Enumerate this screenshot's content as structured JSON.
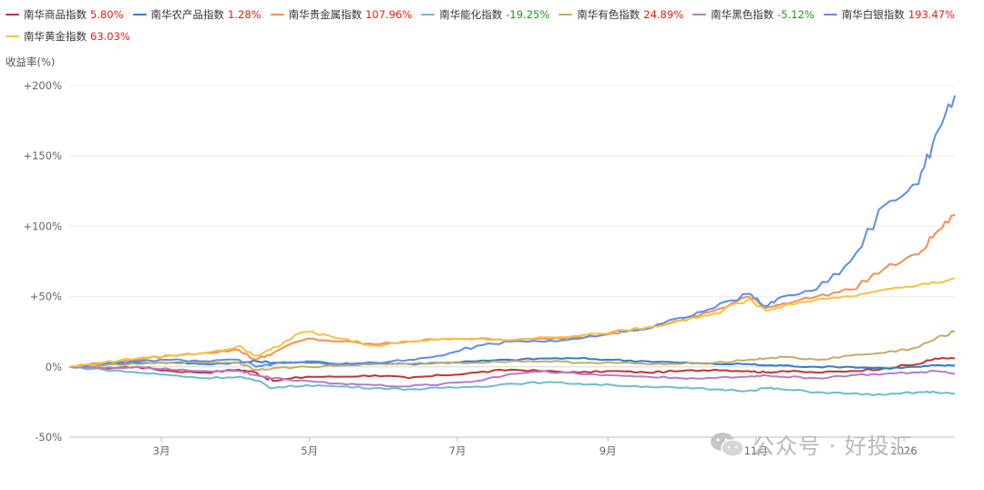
{
  "legend_rows": [
    [
      {
        "name": "南华商品指数",
        "value": "5.80%",
        "color": "#c23531",
        "sign": "pos"
      },
      {
        "name": "南华农产品指数",
        "value": "1.28%",
        "color": "#2f7fc8",
        "sign": "pos"
      },
      {
        "name": "南华贵金属指数",
        "value": "107.96%",
        "color": "#f48f56",
        "sign": "pos"
      },
      {
        "name": "南华能化指数",
        "value": "-19.25%",
        "color": "#6bbfc7",
        "sign": "neg"
      },
      {
        "name": "南华有色指数",
        "value": "24.89%",
        "color": "#c2ad69",
        "sign": "pos"
      },
      {
        "name": "南华黑色指数",
        "value": "-5.12%",
        "color": "#b37dd0",
        "sign": "neg"
      },
      {
        "name": "南华白银指数",
        "value": "193.47%",
        "color": "#5e8ee8",
        "sign": "pos"
      }
    ],
    [
      {
        "name": "南华黄金指数",
        "value": "63.03%",
        "color": "#f5c242",
        "sign": "pos"
      }
    ]
  ],
  "watermark": "公众号 · 好投汇",
  "chart_data": {
    "type": "line",
    "ylabel": "收益率(%)",
    "ylim": [
      -50,
      200
    ],
    "yticks": [
      {
        "value": 200,
        "label": "+200%"
      },
      {
        "value": 150,
        "label": "+150%"
      },
      {
        "value": 100,
        "label": "+100%"
      },
      {
        "value": 50,
        "label": "+50%"
      },
      {
        "value": 0,
        "label": "0%"
      },
      {
        "value": -50,
        "label": "-50%"
      }
    ],
    "xlim": [
      "2025-01-22",
      "2026-01-22"
    ],
    "xticks": [
      {
        "date": "2025-03-01",
        "label": "3月"
      },
      {
        "date": "2025-05-01",
        "label": "5月"
      },
      {
        "date": "2025-07-01",
        "label": "7月"
      },
      {
        "date": "2025-09-01",
        "label": "9月"
      },
      {
        "date": "2025-11-01",
        "label": "11月"
      },
      {
        "date": "2026-01-01",
        "label": "2026"
      }
    ],
    "grid": "horizontal",
    "legend_position": "top-left",
    "dates": [
      "2025-01-22",
      "2025-02-05",
      "2025-02-19",
      "2025-03-05",
      "2025-03-19",
      "2025-04-02",
      "2025-04-09",
      "2025-04-16",
      "2025-04-30",
      "2025-05-14",
      "2025-05-28",
      "2025-06-11",
      "2025-06-25",
      "2025-07-09",
      "2025-07-23",
      "2025-08-06",
      "2025-08-20",
      "2025-09-03",
      "2025-09-17",
      "2025-10-01",
      "2025-10-15",
      "2025-10-29",
      "2025-11-05",
      "2025-11-12",
      "2025-11-26",
      "2025-12-10",
      "2025-12-24",
      "2026-01-07",
      "2026-01-14",
      "2026-01-22"
    ],
    "series": [
      {
        "name": "南华商品指数",
        "color": "#c23531",
        "values": [
          0,
          -1,
          0,
          -3,
          -4,
          -2,
          -4,
          -10,
          -7,
          -7,
          -6,
          -8,
          -6,
          -4,
          -2,
          -3,
          -4,
          -3,
          -4,
          -3,
          -2,
          -3,
          -4,
          -3,
          -4,
          -3,
          -1,
          2,
          6,
          6
        ]
      },
      {
        "name": "南华农产品指数",
        "color": "#2f7fc8",
        "values": [
          0,
          2,
          3,
          3,
          2,
          3,
          4,
          3,
          3,
          2,
          3,
          2,
          3,
          4,
          5,
          6,
          6,
          5,
          4,
          3,
          2,
          2,
          1,
          1,
          0,
          0,
          -1,
          0,
          1,
          1
        ]
      },
      {
        "name": "南华贵金属指数",
        "color": "#f48f56",
        "values": [
          0,
          3,
          5,
          8,
          10,
          12,
          5,
          10,
          20,
          18,
          16,
          18,
          20,
          20,
          19,
          20,
          21,
          24,
          28,
          33,
          40,
          50,
          42,
          45,
          50,
          55,
          70,
          80,
          95,
          108
        ]
      },
      {
        "name": "南华能化指数",
        "color": "#6bbfc7",
        "values": [
          0,
          -2,
          -4,
          -6,
          -8,
          -7,
          -10,
          -15,
          -13,
          -14,
          -15,
          -16,
          -15,
          -14,
          -12,
          -11,
          -12,
          -13,
          -14,
          -15,
          -16,
          -17,
          -15,
          -16,
          -18,
          -19,
          -20,
          -18,
          -18,
          -19
        ]
      },
      {
        "name": "南华有色指数",
        "color": "#c2ad69",
        "values": [
          0,
          1,
          2,
          3,
          3,
          3,
          -2,
          -1,
          0,
          1,
          2,
          2,
          3,
          3,
          4,
          4,
          3,
          3,
          2,
          2,
          3,
          5,
          6,
          7,
          5,
          8,
          10,
          14,
          20,
          25
        ]
      },
      {
        "name": "南华黑色指数",
        "color": "#b37dd0",
        "values": [
          0,
          -1,
          0,
          -2,
          -3,
          -3,
          -6,
          -8,
          -10,
          -12,
          -13,
          -14,
          -12,
          -10,
          -5,
          -3,
          -5,
          -6,
          -7,
          -8,
          -8,
          -7,
          -6,
          -7,
          -8,
          -6,
          -5,
          -4,
          -3,
          -5
        ]
      },
      {
        "name": "南华白银指数",
        "color": "#5e8ee8",
        "values": [
          0,
          2,
          4,
          5,
          4,
          5,
          0,
          2,
          4,
          2,
          3,
          5,
          8,
          15,
          18,
          18,
          20,
          25,
          27,
          35,
          42,
          52,
          43,
          50,
          55,
          75,
          115,
          130,
          165,
          193
        ]
      },
      {
        "name": "南华黄金指数",
        "color": "#f5c242",
        "values": [
          0,
          3,
          6,
          8,
          10,
          15,
          8,
          14,
          25,
          20,
          15,
          18,
          20,
          20,
          19,
          21,
          22,
          25,
          28,
          33,
          38,
          48,
          40,
          43,
          48,
          50,
          55,
          58,
          60,
          63
        ]
      }
    ]
  }
}
